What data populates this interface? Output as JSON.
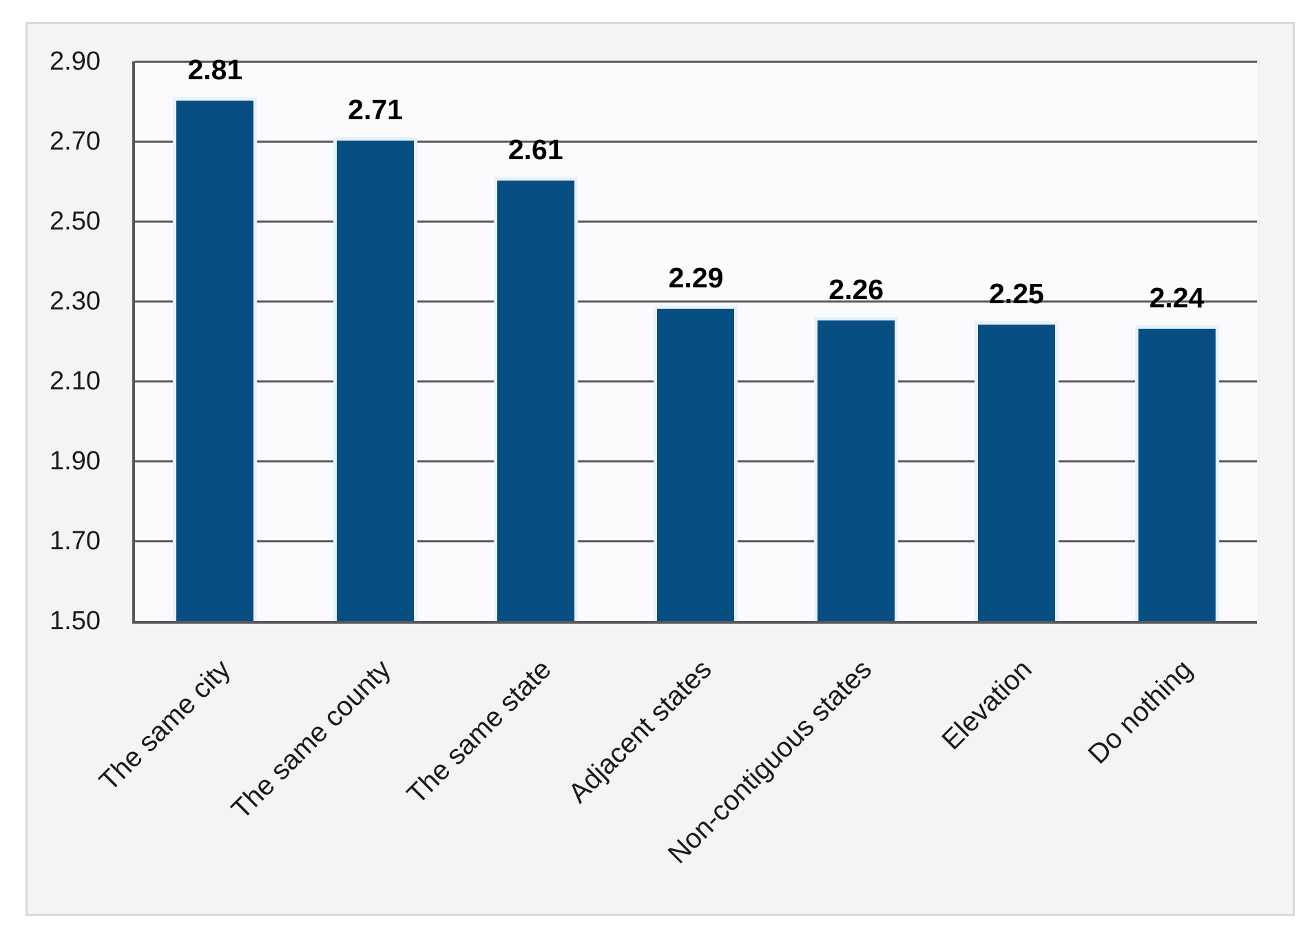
{
  "chart_data": {
    "type": "bar",
    "title": "",
    "xlabel": "",
    "ylabel": "",
    "categories": [
      "The same city",
      "The same county",
      "The same state",
      "Adjacent states",
      "Non-contiguous states",
      "Elevation",
      "Do nothing"
    ],
    "values": [
      2.81,
      2.71,
      2.61,
      2.29,
      2.26,
      2.25,
      2.24
    ],
    "value_labels": [
      "2.81",
      "2.71",
      "2.61",
      "2.29",
      "2.26",
      "2.25",
      "2.24"
    ],
    "ylim": [
      1.5,
      2.9
    ],
    "y_tick_step": 0.2,
    "y_ticks_top_to_bottom": [
      "2.90",
      "2.70",
      "2.50",
      "2.30",
      "2.10",
      "1.90",
      "1.70",
      "1.50"
    ],
    "grid": true,
    "legend": "none",
    "colors": {
      "bar_fill": "#074e83",
      "bar_edge": "#e8f2fb",
      "gridline": "#58585a",
      "axis": "#58585a",
      "chart_background": "#f4f4f5",
      "chart_border": "#d9d9d9",
      "plot_background": "#fbfbfd",
      "tick_text": "#1a1a1a",
      "data_label_text": "#000000"
    }
  }
}
